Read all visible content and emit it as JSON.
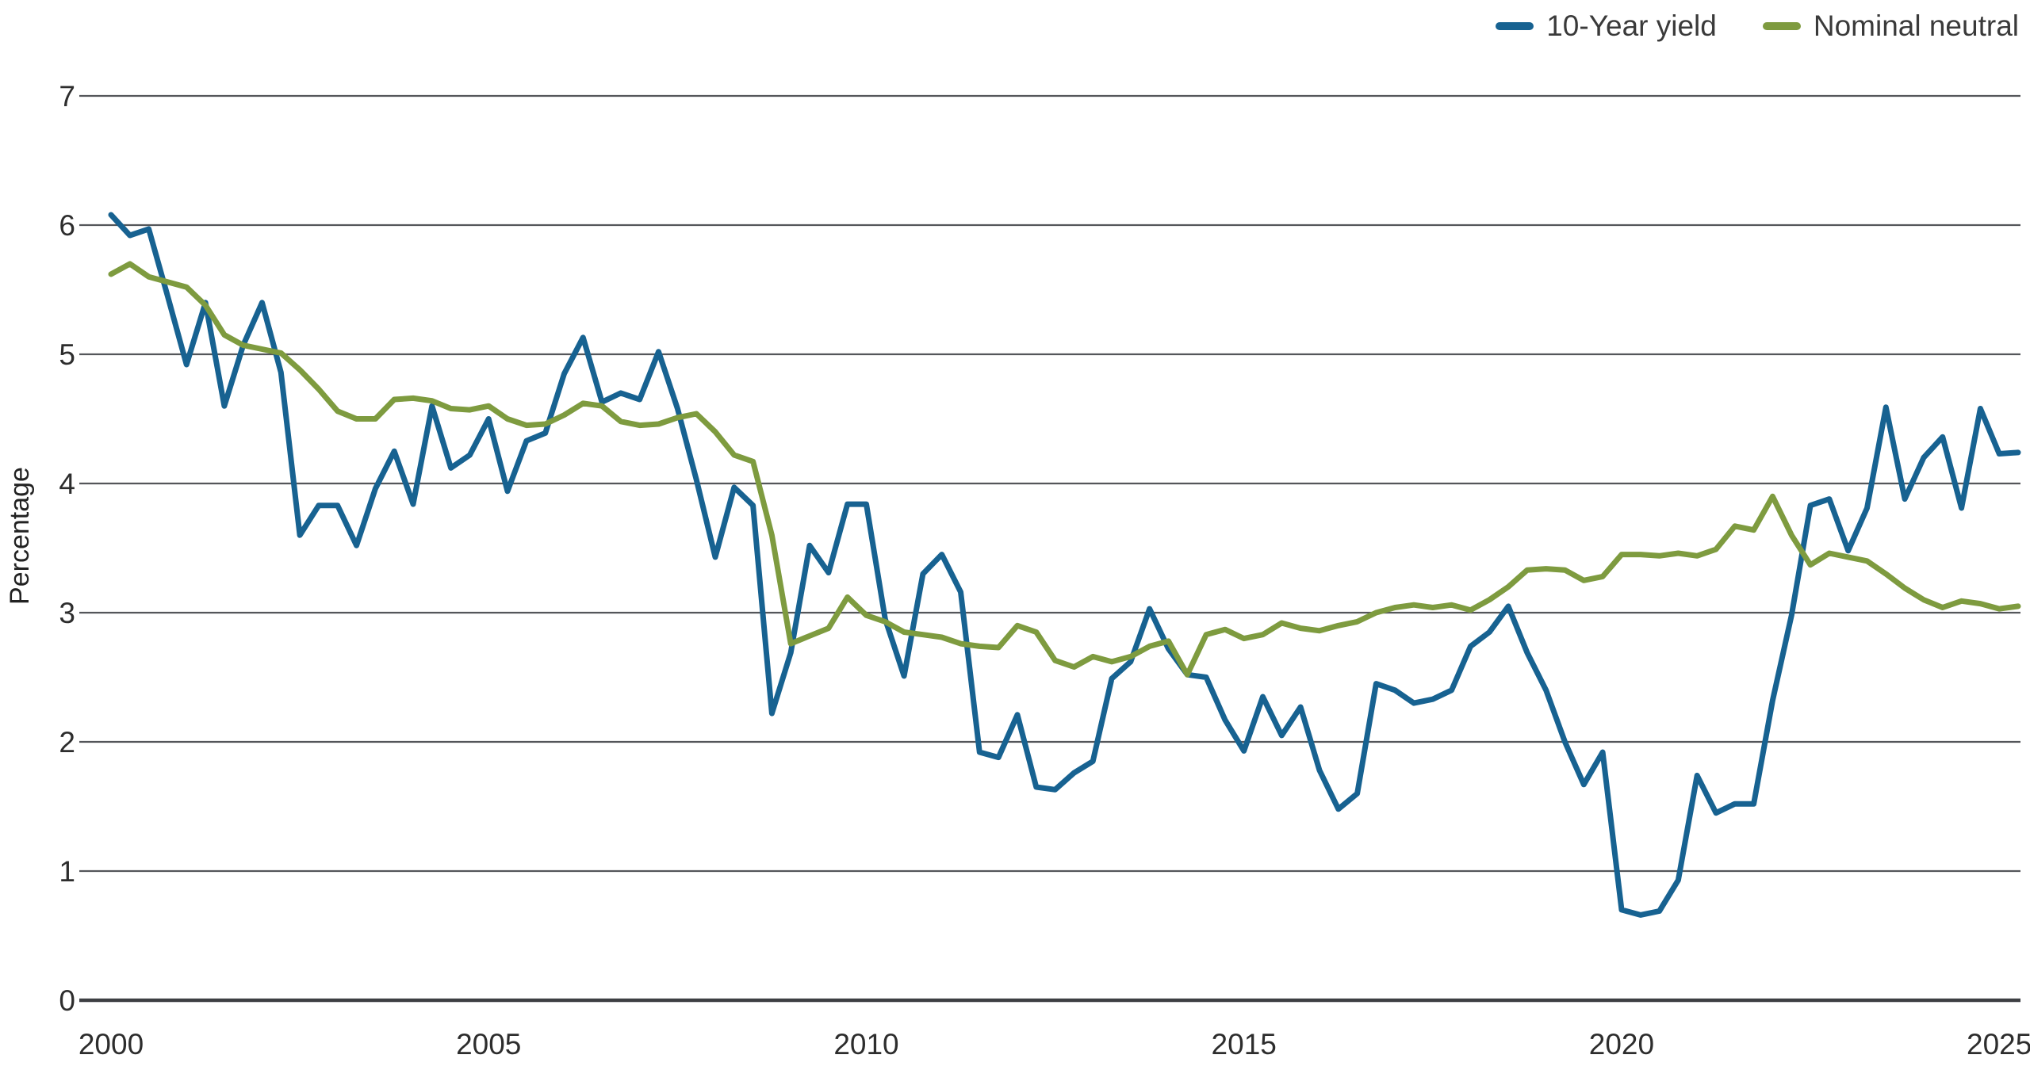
{
  "legend": [
    {
      "label": "10-Year yield",
      "color": "#176291"
    },
    {
      "label": "Nominal neutral",
      "color": "#7E9B3F"
    }
  ],
  "y_axis": {
    "title": "Percentage",
    "ticks": [
      0,
      1,
      2,
      3,
      4,
      5,
      6,
      7
    ]
  },
  "x_axis": {
    "tick_years": [
      2000,
      2005,
      2010,
      2015,
      2020,
      2025
    ]
  },
  "chart_data": {
    "type": "line",
    "title": "",
    "xlabel": "",
    "ylabel": "Percentage",
    "ylim": [
      0,
      7
    ],
    "grid": "horizontal",
    "grid_color": "#54565A",
    "axis_line_color": "#3D3F43",
    "legend_position": "top-right",
    "frequency": "quarterly",
    "x_start": "2000Q1",
    "x_end": "2025Q2",
    "x_tick_years": [
      2000,
      2005,
      2010,
      2015,
      2020,
      2025
    ],
    "y_ticks": [
      0,
      1,
      2,
      3,
      4,
      5,
      6,
      7
    ],
    "series": [
      {
        "name": "10-Year yield",
        "color": "#176291",
        "values": [
          6.08,
          5.92,
          5.97,
          5.45,
          4.92,
          5.4,
          4.6,
          5.07,
          5.4,
          4.86,
          3.6,
          3.83,
          3.83,
          3.52,
          3.96,
          4.25,
          3.84,
          4.6,
          4.12,
          4.22,
          4.5,
          3.94,
          4.33,
          4.39,
          4.85,
          5.13,
          4.63,
          4.7,
          4.65,
          5.02,
          4.58,
          4.03,
          3.43,
          3.97,
          3.83,
          2.22,
          2.69,
          3.52,
          3.31,
          3.84,
          3.84,
          2.95,
          2.51,
          3.3,
          3.45,
          3.16,
          1.92,
          1.88,
          2.21,
          1.65,
          1.63,
          1.76,
          1.85,
          2.49,
          2.62,
          3.03,
          2.72,
          2.52,
          2.5,
          2.17,
          1.93,
          2.35,
          2.05,
          2.27,
          1.78,
          1.48,
          1.6,
          2.45,
          2.4,
          2.3,
          2.33,
          2.4,
          2.74,
          2.85,
          3.05,
          2.69,
          2.4,
          2.0,
          1.67,
          1.92,
          0.7,
          0.66,
          0.69,
          0.93,
          1.74,
          1.45,
          1.52,
          1.52,
          2.32,
          2.98,
          3.83,
          3.88,
          3.48,
          3.81,
          4.59,
          3.88,
          4.2,
          4.36,
          3.81,
          4.58,
          4.23,
          4.24
        ]
      },
      {
        "name": "Nominal neutral",
        "color": "#7E9B3F",
        "values": [
          5.62,
          5.7,
          5.6,
          5.56,
          5.52,
          5.38,
          5.15,
          5.07,
          5.04,
          5.01,
          4.88,
          4.73,
          4.56,
          4.5,
          4.5,
          4.65,
          4.66,
          4.64,
          4.58,
          4.57,
          4.6,
          4.5,
          4.45,
          4.46,
          4.53,
          4.62,
          4.6,
          4.48,
          4.45,
          4.46,
          4.51,
          4.54,
          4.4,
          4.22,
          4.17,
          3.6,
          2.76,
          2.82,
          2.88,
          3.12,
          2.98,
          2.93,
          2.85,
          2.83,
          2.81,
          2.76,
          2.74,
          2.73,
          2.9,
          2.85,
          2.63,
          2.58,
          2.66,
          2.62,
          2.66,
          2.74,
          2.78,
          2.52,
          2.83,
          2.87,
          2.8,
          2.83,
          2.92,
          2.88,
          2.86,
          2.9,
          2.93,
          3.0,
          3.04,
          3.06,
          3.04,
          3.06,
          3.02,
          3.1,
          3.2,
          3.33,
          3.34,
          3.33,
          3.25,
          3.28,
          3.45,
          3.45,
          3.44,
          3.46,
          3.44,
          3.49,
          3.67,
          3.64,
          3.9,
          3.6,
          3.37,
          3.46,
          3.43,
          3.4,
          3.3,
          3.19,
          3.1,
          3.04,
          3.09,
          3.07,
          3.03,
          3.05
        ]
      }
    ]
  }
}
